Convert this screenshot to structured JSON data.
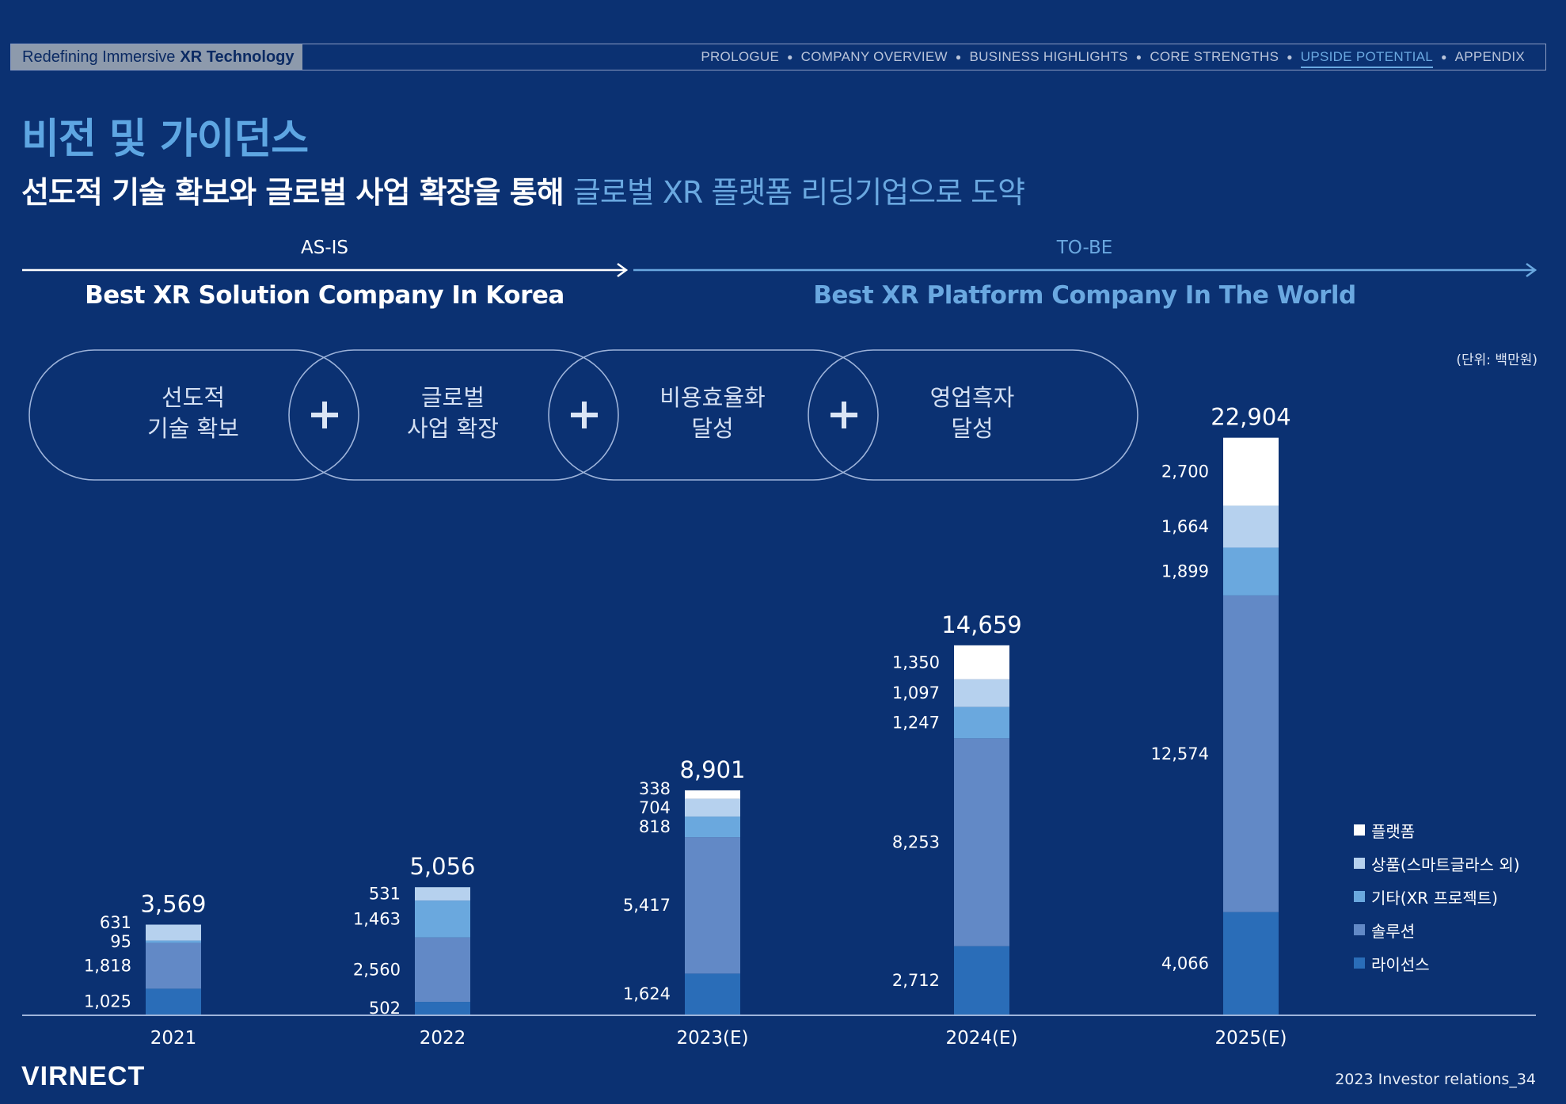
{
  "header": {
    "tag_prefix": "Redefining Immersive",
    "tag_bold": "XR Technology",
    "nav": [
      "PROLOGUE",
      "COMPANY OVERVIEW",
      "BUSINESS HIGHLIGHTS",
      "CORE STRENGTHS",
      "UPSIDE POTENTIAL",
      "APPENDIX"
    ],
    "active_nav": "UPSIDE POTENTIAL"
  },
  "page_title": "비전 및 가이던스",
  "subtitle": {
    "main": "선도적 기술 확보와 글로벌 사업 확장을 통해",
    "highlight": "글로벌 XR 플랫폼 리딩기업으로 도약"
  },
  "stages": {
    "as_is_label": "AS-IS",
    "as_is_title": "Best XR Solution Company In Korea",
    "to_be_label": "TO-BE",
    "to_be_title": "Best XR Platform Company In The World"
  },
  "pills": [
    "선도적\n기술 확보",
    "글로벌\n사업 확장",
    "비용효율화\n달성",
    "영업흑자\n달성"
  ],
  "unit": "(단위: 백만원)",
  "footer": {
    "logo": "VIRNECT",
    "page": "2023 Investor relations_34"
  },
  "colors": {
    "background": "#0b3172",
    "license": "#2a6db8",
    "solution": "#6289c6",
    "other_xr": "#6aa8de",
    "product": "#b6d1ee",
    "platform": "#ffffff",
    "accent": "#6aa8e0"
  },
  "chart_data": {
    "type": "bar",
    "stacked": true,
    "categories": [
      "2021",
      "2022",
      "2023(E)",
      "2024(E)",
      "2025(E)"
    ],
    "totals": [
      "3,569",
      "5,056",
      "8,901",
      "14,659",
      "22,904"
    ],
    "series": [
      {
        "name": "라이선스",
        "color": "#2a6db8",
        "values": [
          1025,
          502,
          1624,
          2712,
          4066
        ],
        "labels": [
          "1,025",
          "502",
          "1,624",
          "2,712",
          "4,066"
        ]
      },
      {
        "name": "솔루션",
        "color": "#6289c6",
        "values": [
          1818,
          2560,
          5417,
          8253,
          12574
        ],
        "labels": [
          "1,818",
          "2,560",
          "5,417",
          "8,253",
          "12,574"
        ]
      },
      {
        "name": "기타(XR 프로젝트)",
        "color": "#6aa8de",
        "values": [
          95,
          1463,
          818,
          1247,
          1899
        ],
        "labels": [
          "95",
          "1,463",
          "818",
          "1,247",
          "1,899"
        ]
      },
      {
        "name": "상품(스마트글라스 외)",
        "color": "#b6d1ee",
        "values": [
          631,
          531,
          704,
          1097,
          1664
        ],
        "labels": [
          "631",
          "531",
          "704",
          "1,097",
          "1,664"
        ]
      },
      {
        "name": "플랫폼",
        "color": "#ffffff",
        "values": [
          0,
          0,
          338,
          1350,
          2700
        ],
        "labels": [
          "",
          "",
          "338",
          "1,350",
          "2,700"
        ]
      }
    ],
    "legend_order": [
      "플랫폼",
      "상품(스마트글라스 외)",
      "기타(XR 프로젝트)",
      "솔루션",
      "라이선스"
    ],
    "legend_position": "right",
    "grid": false
  }
}
